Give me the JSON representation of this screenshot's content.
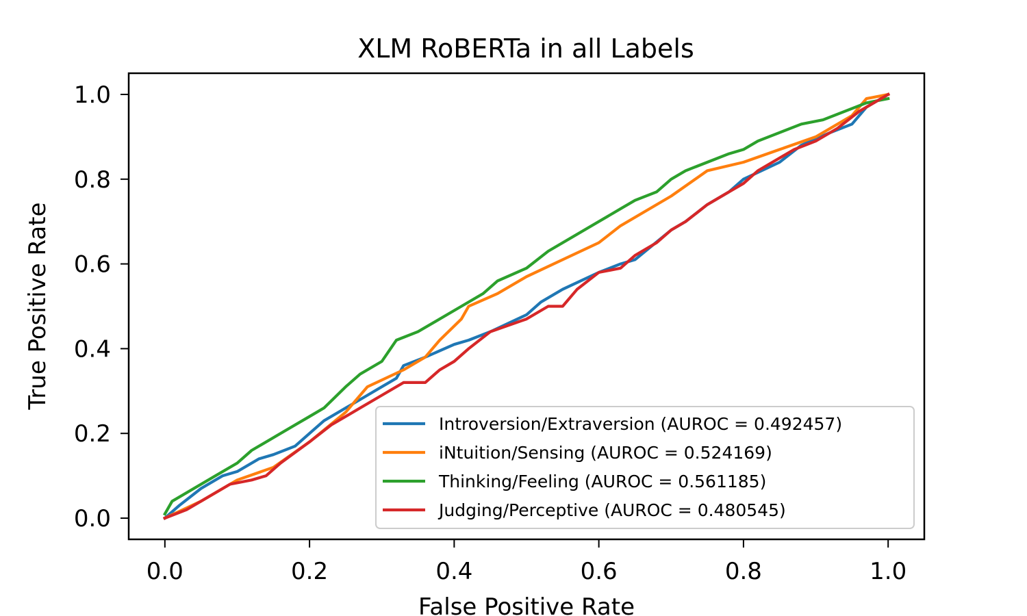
{
  "chart_data": {
    "type": "line",
    "title": "XLM RoBERTa in all Labels",
    "xlabel": "False Positive Rate",
    "ylabel": "True Positive Rate",
    "xlim": [
      -0.05,
      1.05
    ],
    "ylim": [
      -0.05,
      1.05
    ],
    "xticks": [
      "0.0",
      "0.2",
      "0.4",
      "0.6",
      "0.8",
      "1.0"
    ],
    "yticks": [
      "0.0",
      "0.2",
      "0.4",
      "0.6",
      "0.8",
      "1.0"
    ],
    "grid": false,
    "legend_position": "lower-right",
    "series": [
      {
        "name": "Introversion/Extraversion (AUROC = 0.492457)",
        "color": "#1f77b4",
        "x": [
          0,
          0.02,
          0.05,
          0.08,
          0.1,
          0.13,
          0.15,
          0.18,
          0.2,
          0.22,
          0.25,
          0.28,
          0.3,
          0.32,
          0.33,
          0.36,
          0.4,
          0.42,
          0.45,
          0.5,
          0.52,
          0.55,
          0.6,
          0.63,
          0.65,
          0.7,
          0.72,
          0.75,
          0.78,
          0.8,
          0.85,
          0.88,
          0.92,
          0.95,
          0.97,
          1.0
        ],
        "y": [
          0,
          0.03,
          0.07,
          0.1,
          0.11,
          0.14,
          0.15,
          0.17,
          0.2,
          0.23,
          0.26,
          0.29,
          0.31,
          0.33,
          0.36,
          0.38,
          0.41,
          0.42,
          0.44,
          0.48,
          0.51,
          0.54,
          0.58,
          0.6,
          0.61,
          0.68,
          0.7,
          0.74,
          0.77,
          0.8,
          0.84,
          0.88,
          0.91,
          0.93,
          0.97,
          1.0
        ]
      },
      {
        "name": "iNtuition/Sensing (AUROC = 0.524169)",
        "color": "#ff7f0e",
        "x": [
          0,
          0.05,
          0.1,
          0.15,
          0.2,
          0.25,
          0.28,
          0.33,
          0.36,
          0.38,
          0.41,
          0.42,
          0.46,
          0.5,
          0.55,
          0.6,
          0.63,
          0.7,
          0.75,
          0.8,
          0.85,
          0.9,
          0.95,
          0.97,
          1.0
        ],
        "y": [
          0,
          0.04,
          0.09,
          0.12,
          0.18,
          0.25,
          0.31,
          0.35,
          0.38,
          0.42,
          0.47,
          0.5,
          0.53,
          0.57,
          0.61,
          0.65,
          0.69,
          0.76,
          0.82,
          0.84,
          0.87,
          0.9,
          0.95,
          0.99,
          1.0
        ]
      },
      {
        "name": "Thinking/Feeling (AUROC = 0.561185)",
        "color": "#2ca02c",
        "x": [
          0,
          0.01,
          0.04,
          0.07,
          0.1,
          0.12,
          0.15,
          0.18,
          0.2,
          0.22,
          0.25,
          0.27,
          0.3,
          0.32,
          0.35,
          0.38,
          0.41,
          0.44,
          0.46,
          0.5,
          0.53,
          0.56,
          0.6,
          0.63,
          0.65,
          0.68,
          0.7,
          0.72,
          0.75,
          0.78,
          0.8,
          0.82,
          0.85,
          0.88,
          0.91,
          0.94,
          0.97,
          1.0
        ],
        "y": [
          0.01,
          0.04,
          0.07,
          0.1,
          0.13,
          0.16,
          0.19,
          0.22,
          0.24,
          0.26,
          0.31,
          0.34,
          0.37,
          0.42,
          0.44,
          0.47,
          0.5,
          0.53,
          0.56,
          0.59,
          0.63,
          0.66,
          0.7,
          0.73,
          0.75,
          0.77,
          0.8,
          0.82,
          0.84,
          0.86,
          0.87,
          0.89,
          0.91,
          0.93,
          0.94,
          0.96,
          0.98,
          0.99
        ]
      },
      {
        "name": "Judging/Perceptive (AUROC = 0.480545)",
        "color": "#d62728",
        "x": [
          0,
          0.03,
          0.06,
          0.09,
          0.12,
          0.14,
          0.16,
          0.2,
          0.23,
          0.27,
          0.3,
          0.33,
          0.36,
          0.38,
          0.4,
          0.42,
          0.45,
          0.5,
          0.53,
          0.55,
          0.57,
          0.6,
          0.63,
          0.65,
          0.68,
          0.7,
          0.72,
          0.75,
          0.78,
          0.8,
          0.82,
          0.85,
          0.87,
          0.9,
          0.93,
          0.96,
          1.0
        ],
        "y": [
          0,
          0.02,
          0.05,
          0.08,
          0.09,
          0.1,
          0.13,
          0.18,
          0.22,
          0.26,
          0.29,
          0.32,
          0.32,
          0.35,
          0.37,
          0.4,
          0.44,
          0.47,
          0.5,
          0.5,
          0.54,
          0.58,
          0.59,
          0.62,
          0.65,
          0.68,
          0.7,
          0.74,
          0.77,
          0.79,
          0.82,
          0.85,
          0.87,
          0.89,
          0.92,
          0.96,
          1.0
        ]
      }
    ]
  }
}
